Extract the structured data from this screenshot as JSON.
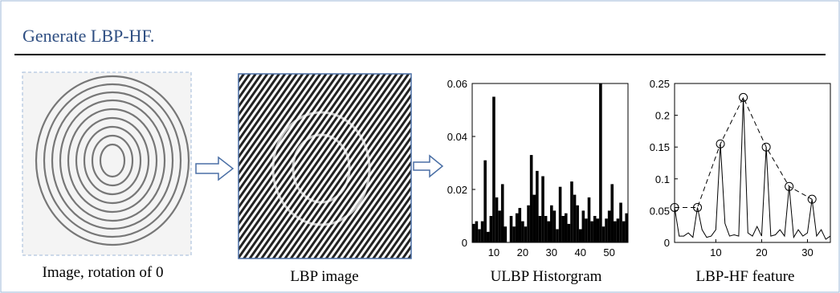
{
  "header": {
    "title": "Generate LBP-HF."
  },
  "panels": [
    {
      "caption": "Image, rotation of 0"
    },
    {
      "caption": "LBP image"
    }
  ],
  "chart_data": [
    {
      "type": "bar",
      "xlabel": "ULBP Historgram",
      "color": "#000000",
      "x": [
        3,
        4,
        5,
        6,
        7,
        8,
        9,
        10,
        11,
        12,
        13,
        14,
        15,
        16,
        17,
        18,
        19,
        20,
        21,
        22,
        23,
        24,
        25,
        26,
        27,
        28,
        29,
        30,
        31,
        32,
        33,
        34,
        35,
        36,
        37,
        38,
        39,
        40,
        41,
        42,
        43,
        44,
        45,
        46,
        47,
        48,
        49,
        50,
        51,
        52,
        53,
        54,
        55,
        56
      ],
      "values": [
        0.007,
        0.008,
        0.005,
        0.008,
        0.031,
        0.004,
        0.01,
        0.055,
        0.017,
        0.012,
        0.022,
        0.006,
        0.0,
        0.01,
        0.006,
        0.011,
        0.013,
        0.008,
        0.006,
        0.014,
        0.033,
        0.018,
        0.027,
        0.01,
        0.025,
        0.01,
        0.008,
        0.014,
        0.012,
        0.005,
        0.021,
        0.01,
        0.011,
        0.007,
        0.023,
        0.018,
        0.014,
        0.005,
        0.012,
        0.009,
        0.017,
        0.008,
        0.01,
        0.009,
        0.06,
        0.006,
        0.009,
        0.012,
        0.022,
        0.008,
        0.009,
        0.015,
        0.008,
        0.011
      ],
      "xlim": [
        2.5,
        56.5
      ],
      "xticks": [
        10,
        20,
        30,
        40,
        50
      ],
      "ylim": [
        0,
        0.06
      ],
      "yticks": [
        0,
        0.02,
        0.04,
        0.06
      ]
    },
    {
      "type": "line",
      "xlabel": "LBP-HF feature",
      "color": "#000000",
      "x": [
        1,
        2,
        3,
        4,
        5,
        6,
        7,
        8,
        9,
        10,
        11,
        12,
        13,
        14,
        15,
        16,
        17,
        18,
        19,
        20,
        21,
        22,
        23,
        24,
        25,
        26,
        27,
        28,
        29,
        30,
        31,
        32,
        33,
        34,
        35
      ],
      "values": [
        0.055,
        0.01,
        0.01,
        0.015,
        0.008,
        0.055,
        0.02,
        0.008,
        0.01,
        0.02,
        0.155,
        0.03,
        0.01,
        0.012,
        0.01,
        0.228,
        0.015,
        0.01,
        0.025,
        0.01,
        0.15,
        0.01,
        0.012,
        0.02,
        0.01,
        0.088,
        0.008,
        0.02,
        0.01,
        0.015,
        0.068,
        0.01,
        0.02,
        0.005,
        0.01
      ],
      "markers_x": [
        1,
        6,
        11,
        16,
        21,
        26,
        31
      ],
      "xlim": [
        1,
        35
      ],
      "xticks": [
        10,
        20,
        30
      ],
      "ylim": [
        0,
        0.25
      ],
      "yticks": [
        0,
        0.05,
        0.1,
        0.15,
        0.2,
        0.25
      ]
    }
  ]
}
